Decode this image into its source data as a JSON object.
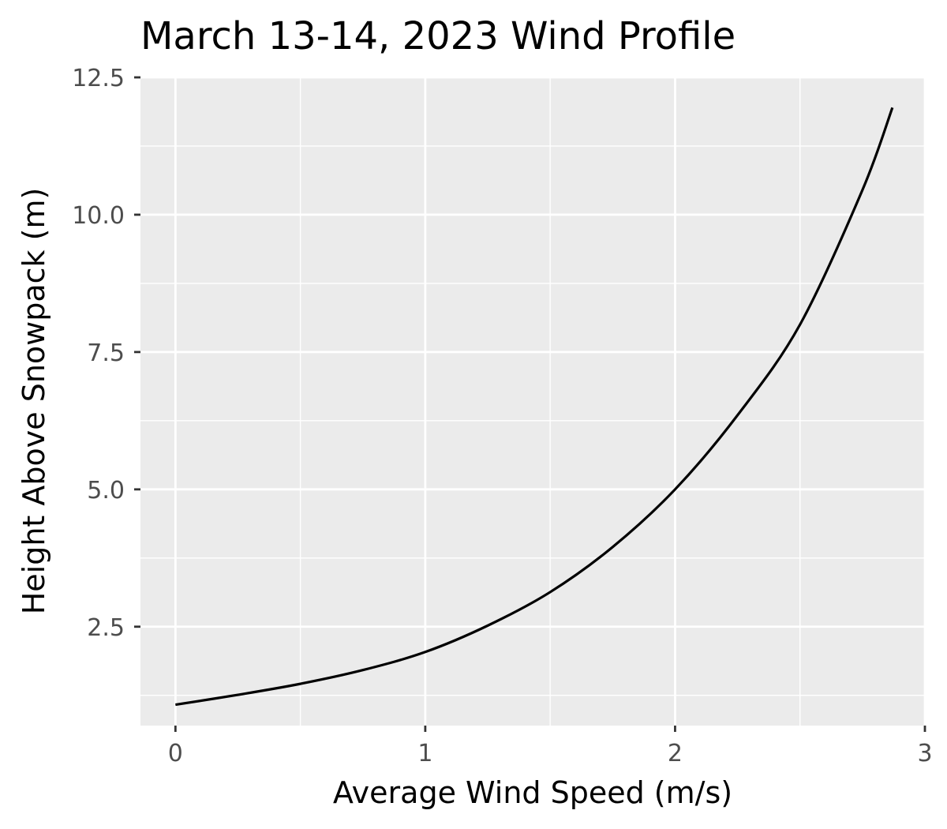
{
  "chart_data": {
    "type": "line",
    "title": "March 13-14, 2023 Wind Profile",
    "xlabel": "Average Wind Speed (m/s)",
    "ylabel": "Height Above Snowpack (m)",
    "xlim": [
      -0.14,
      3.0
    ],
    "ylim": [
      0.7,
      12.5
    ],
    "x_ticks": [
      0,
      1,
      2,
      3
    ],
    "x_tick_labels": [
      "0",
      "1",
      "2",
      "3"
    ],
    "y_ticks": [
      2.5,
      5.0,
      7.5,
      10.0,
      12.5
    ],
    "y_tick_labels": [
      "2.5",
      "5.0",
      "7.5",
      "10.0",
      "12.5"
    ],
    "x_minor_gridlines": [
      0.5,
      1.5,
      2.5
    ],
    "y_minor_gridlines": [
      1.25,
      3.75,
      6.25,
      8.75,
      11.25
    ],
    "grid": true,
    "legend": "none",
    "series": [
      {
        "x": [
          0.0,
          0.25,
          0.5,
          0.75,
          1.0,
          1.25,
          1.5,
          1.75,
          2.0,
          2.25,
          2.5,
          2.75,
          2.87
        ],
        "y": [
          1.08,
          1.26,
          1.46,
          1.71,
          2.04,
          2.52,
          3.13,
          3.95,
          5.0,
          6.35,
          8.0,
          10.45,
          11.95
        ]
      }
    ],
    "colors": {
      "panel": "#ebebeb",
      "grid": "#ffffff",
      "line": "#000000",
      "tick": "#333333"
    }
  }
}
